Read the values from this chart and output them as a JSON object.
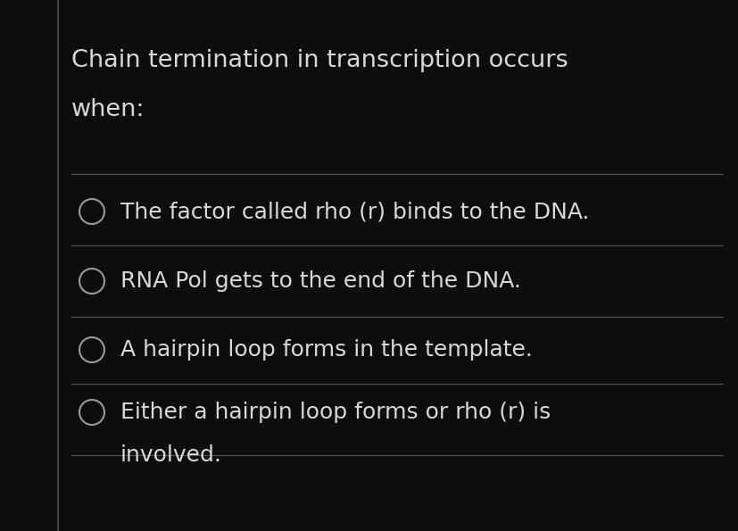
{
  "background_color": "#0d0d0d",
  "panel_color": "#161616",
  "left_line_color": "#444444",
  "text_color": "#d8d8d8",
  "circle_edge_color": "#999999",
  "title_line1": "Chain termination in transcription occurs",
  "title_line2": "when:",
  "options": [
    "The factor called rho (r) binds to the DNA.",
    "RNA Pol gets to the end of the DNA.",
    "A hairpin loop forms in the template.",
    "Either a hairpin loop forms or rho (r) is",
    "involved."
  ],
  "title_fontsize": 19.5,
  "option_fontsize": 18,
  "divider_color": "#555555",
  "fig_width": 8.28,
  "fig_height": 5.95,
  "dpi": 100
}
